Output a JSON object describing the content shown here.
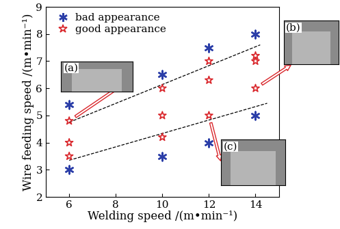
{
  "chart_data": {
    "type": "scatter",
    "x_label": "Welding speed /(m•min⁻¹)",
    "y_label": "Wire feeding speed /(m•min⁻¹)",
    "xlim": [
      5,
      15
    ],
    "xticks": [
      6,
      8,
      10,
      12,
      14
    ],
    "ylim": [
      2,
      9
    ],
    "yticks": [
      2,
      3,
      4,
      5,
      6,
      7,
      8,
      9
    ],
    "grid": false,
    "legend": "upper left",
    "series": [
      {
        "name": "bad appearance",
        "type": "scatter",
        "color": "#2b3ea8",
        "marker": "asterisk",
        "x": [
          6,
          6,
          10,
          10,
          12,
          12,
          14,
          14
        ],
        "values": [
          5.4,
          3.0,
          6.5,
          3.5,
          7.5,
          4.0,
          8.0,
          5.0
        ]
      },
      {
        "name": "good appearance",
        "type": "scatter",
        "color": "#d9262b",
        "marker": "star",
        "x": [
          6,
          6,
          6,
          10,
          10,
          10,
          12,
          12,
          12,
          14,
          14,
          14
        ],
        "values": [
          4.8,
          4.0,
          3.5,
          6.0,
          5.0,
          4.2,
          7.0,
          6.3,
          5.0,
          7.2,
          7.0,
          6.0
        ]
      },
      {
        "type": "line",
        "color": "#000000",
        "line_style": "dashed",
        "x": [
          6,
          14.2
        ],
        "values": [
          4.75,
          7.6
        ]
      },
      {
        "type": "line",
        "color": "#000000",
        "line_style": "dashed",
        "x": [
          6,
          14.5
        ],
        "values": [
          3.35,
          5.45
        ]
      }
    ],
    "annotations": [
      {
        "text": "(a)",
        "x": 6,
        "y": 4.8
      },
      {
        "text": "(b)",
        "x": 14,
        "y": 6.0
      },
      {
        "text": "(c)",
        "x": 12,
        "y": 5.0
      }
    ]
  }
}
